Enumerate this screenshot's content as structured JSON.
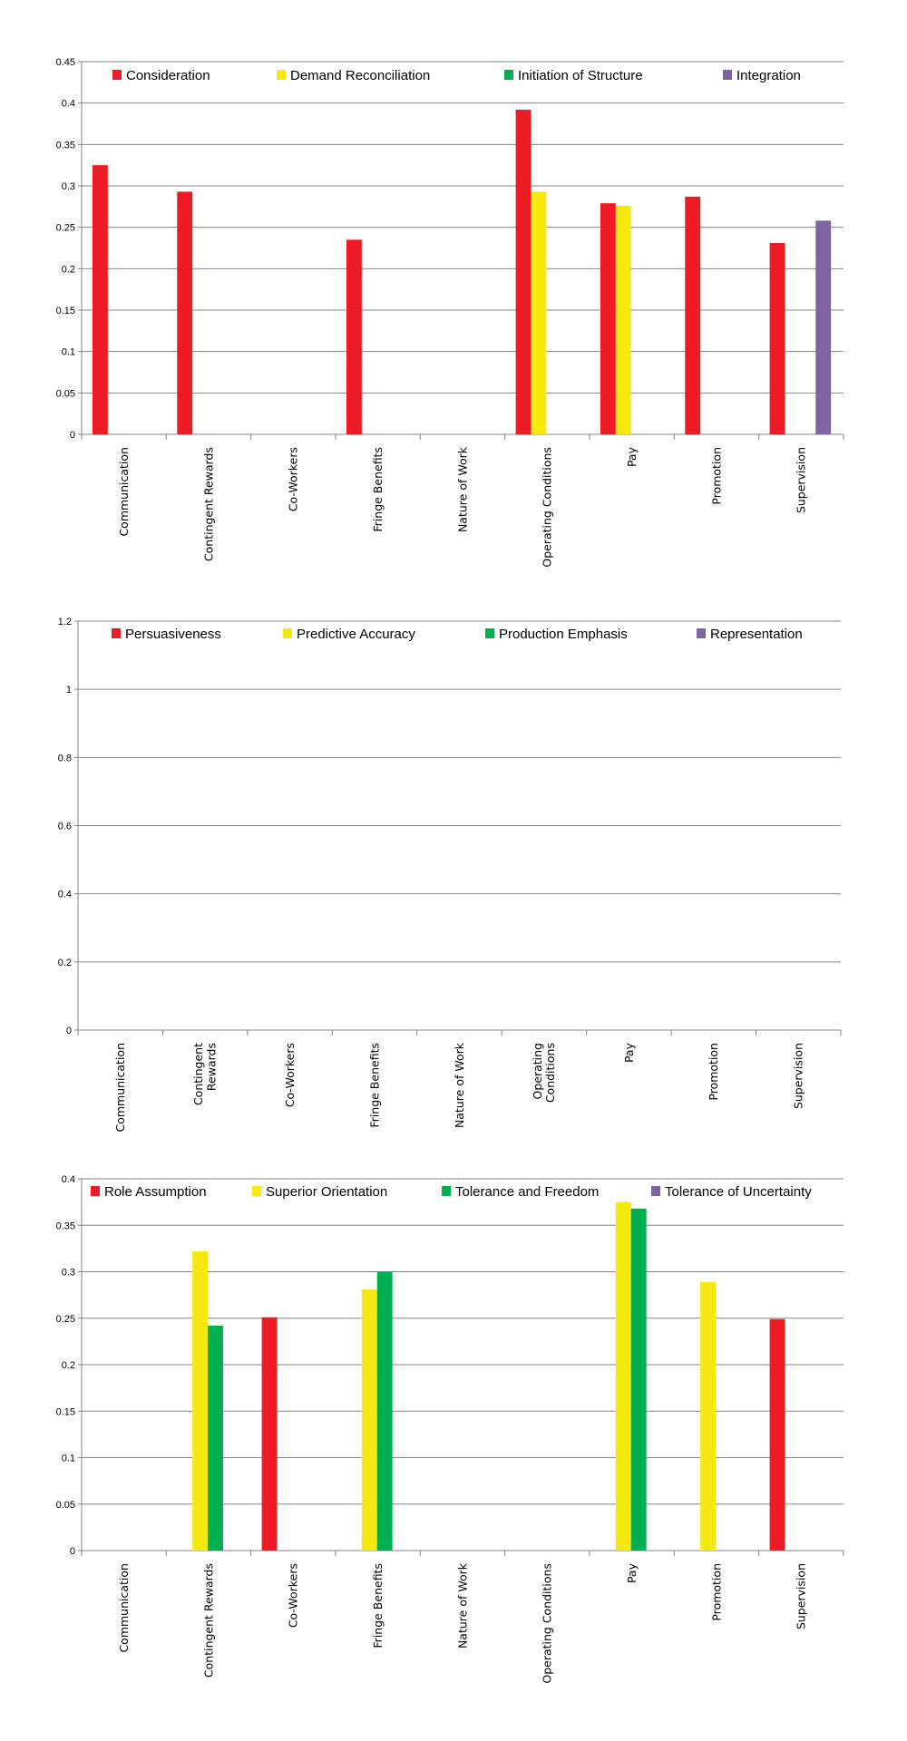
{
  "chart_data": [
    {
      "type": "bar",
      "title": "",
      "xlabel": "",
      "ylabel": "",
      "ylim": [
        0,
        0.45
      ],
      "yticks": [
        "0",
        "0.05",
        "0.1",
        "0.15",
        "0.2",
        "0.25",
        "0.3",
        "0.35",
        "0.4",
        "0.45"
      ],
      "grid": true,
      "legend_position": "top",
      "categories": [
        "Communication",
        "Contingent Rewards",
        "Co-Workers",
        "Fringe Benefits",
        "Nature of Work",
        "Operating Conditions",
        "Pay",
        "Promotion",
        "Supervision"
      ],
      "series": [
        {
          "name": "Consideration",
          "color": "#ed1c24",
          "values": [
            0.325,
            0.293,
            null,
            0.235,
            null,
            0.392,
            0.279,
            0.287,
            0.231
          ]
        },
        {
          "name": "Demand Reconciliation",
          "color": "#f5e911",
          "values": [
            null,
            null,
            null,
            null,
            null,
            0.293,
            0.276,
            null,
            null
          ]
        },
        {
          "name": "Initiation of Structure",
          "color": "#00b050",
          "values": [
            null,
            null,
            null,
            null,
            null,
            null,
            null,
            null,
            null
          ]
        },
        {
          "name": "Integration",
          "color": "#8064a2",
          "values": [
            null,
            null,
            null,
            null,
            null,
            null,
            null,
            null,
            0.258
          ]
        }
      ]
    },
    {
      "type": "bar",
      "title": "",
      "xlabel": "",
      "ylabel": "",
      "ylim": [
        0,
        1.2
      ],
      "yticks": [
        "0",
        "0.2",
        "0.4",
        "0.6",
        "0.8",
        "1",
        "1.2"
      ],
      "grid": true,
      "legend_position": "top",
      "categories": [
        "Communication",
        "Contingent Rewards",
        "Co-Workers",
        "Fringe Benefits",
        "Nature of Work",
        "Operating Conditions",
        "Pay",
        "Promotion",
        "Supervision"
      ],
      "series": [
        {
          "name": "Persuasiveness",
          "color": "#ed1c24",
          "values": [
            null,
            null,
            null,
            null,
            null,
            null,
            null,
            null,
            null
          ]
        },
        {
          "name": "Predictive Accuracy",
          "color": "#f5e911",
          "values": [
            null,
            null,
            null,
            null,
            null,
            null,
            null,
            null,
            null
          ]
        },
        {
          "name": "Production Emphasis",
          "color": "#00b050",
          "values": [
            null,
            null,
            null,
            null,
            null,
            null,
            null,
            null,
            null
          ]
        },
        {
          "name": "Representation",
          "color": "#8064a2",
          "values": [
            null,
            null,
            null,
            null,
            null,
            null,
            null,
            null,
            null
          ]
        }
      ]
    },
    {
      "type": "bar",
      "title": "",
      "xlabel": "",
      "ylabel": "",
      "ylim": [
        0,
        0.4
      ],
      "yticks": [
        "0",
        "0.05",
        "0.1",
        "0.15",
        "0.2",
        "0.25",
        "0.3",
        "0.35",
        "0.4"
      ],
      "grid": true,
      "legend_position": "top",
      "categories": [
        "Communication",
        "Contingent Rewards",
        "Co-Workers",
        "Fringe Benefits",
        "Nature of Work",
        "Operating Conditions",
        "Pay",
        "Promotion",
        "Supervision"
      ],
      "series": [
        {
          "name": "Role Assumption",
          "color": "#ed1c24",
          "values": [
            null,
            null,
            0.251,
            null,
            null,
            null,
            null,
            null,
            0.249
          ]
        },
        {
          "name": "Superior Orientation",
          "color": "#f5e911",
          "values": [
            null,
            0.322,
            null,
            0.281,
            null,
            null,
            0.375,
            0.289,
            null
          ]
        },
        {
          "name": "Tolerance and Freedom",
          "color": "#00b050",
          "values": [
            null,
            0.242,
            null,
            0.3,
            null,
            null,
            0.368,
            null,
            null
          ]
        },
        {
          "name": "Tolerance of Uncertainty",
          "color": "#8064a2",
          "values": [
            null,
            null,
            null,
            null,
            null,
            null,
            null,
            null,
            null
          ]
        }
      ]
    }
  ]
}
